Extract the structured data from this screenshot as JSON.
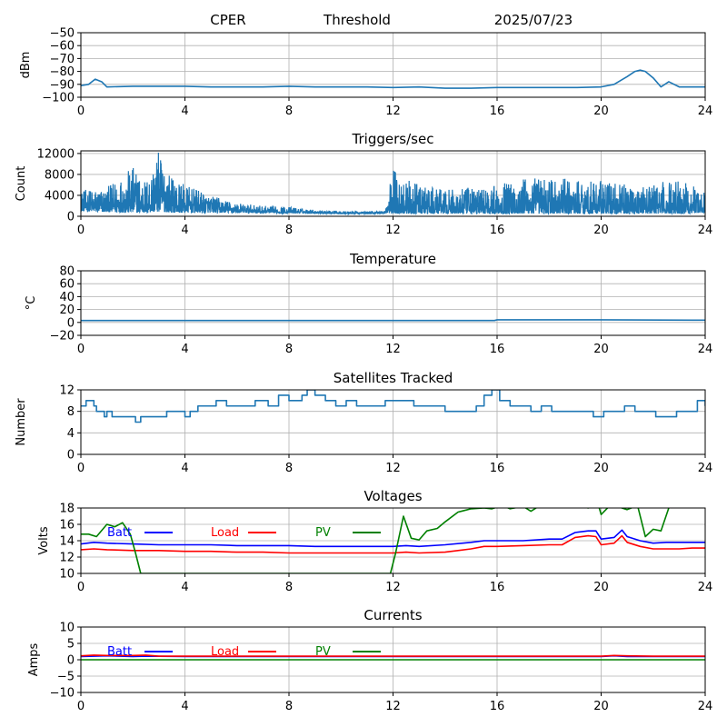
{
  "header": {
    "site": "CPER",
    "mode": "Threshold",
    "date": "2025/07/23"
  },
  "colors": {
    "series_default": "#1f77b4",
    "batt": "#0000ff",
    "load": "#ff0000",
    "pv": "#008000",
    "grid": "#b0b0b0"
  },
  "chart_data": [
    {
      "id": "threshold",
      "type": "line",
      "title": "",
      "xlabel": "",
      "ylabel": "dBm",
      "xlim": [
        0,
        24
      ],
      "ylim": [
        -100,
        -50
      ],
      "xticks": [
        0,
        4,
        8,
        12,
        16,
        20,
        24
      ],
      "yticks": [
        -100,
        -90,
        -80,
        -70,
        -60,
        -50
      ],
      "grid": true,
      "series": [
        {
          "color": "#1f77b4",
          "x": [
            0,
            0.3,
            0.55,
            0.8,
            1.0,
            2,
            3,
            4,
            5,
            6,
            7,
            8,
            9,
            10,
            11,
            12,
            13,
            14,
            15,
            16,
            17,
            18,
            19,
            20,
            20.5,
            21.0,
            21.3,
            21.5,
            21.7,
            22.0,
            22.3,
            22.6,
            23,
            24
          ],
          "y": [
            -91,
            -90,
            -86,
            -88,
            -92,
            -91.5,
            -91.5,
            -91.5,
            -92,
            -92,
            -92,
            -91.5,
            -92,
            -92,
            -92,
            -92.5,
            -92,
            -93,
            -93,
            -92.5,
            -92.5,
            -92.5,
            -92.5,
            -92,
            -90,
            -84,
            -80,
            -79,
            -80,
            -85,
            -92,
            -88,
            -92,
            -92
          ]
        }
      ]
    },
    {
      "id": "triggers",
      "type": "line",
      "title": "Triggers/sec",
      "xlabel": "",
      "ylabel": "Count",
      "xlim": [
        0,
        24
      ],
      "ylim": [
        0,
        12500
      ],
      "xticks": [
        0,
        4,
        8,
        12,
        16,
        20,
        24
      ],
      "yticks": [
        0,
        4000,
        8000,
        12000
      ],
      "grid": true,
      "noisy": true,
      "envelope": {
        "x": [
          0,
          1,
          2,
          2.5,
          3,
          3.5,
          4,
          5,
          6,
          7,
          8,
          9,
          10,
          11,
          11.7,
          12,
          12.3,
          13,
          14,
          15,
          16,
          17,
          18,
          19,
          20,
          21,
          22,
          23,
          24
        ],
        "high": [
          5000,
          5500,
          9500,
          7000,
          12500,
          7500,
          6000,
          4000,
          2500,
          2000,
          1800,
          1200,
          1000,
          900,
          1200,
          9500,
          7500,
          6000,
          5000,
          5500,
          6000,
          7500,
          7500,
          7000,
          7000,
          6000,
          6000,
          7500,
          4500
        ],
        "low": [
          1000,
          800,
          700,
          700,
          900,
          700,
          700,
          700,
          700,
          600,
          600,
          600,
          500,
          500,
          500,
          500,
          500,
          500,
          500,
          500,
          500,
          500,
          500,
          500,
          500,
          500,
          500,
          500,
          700
        ]
      }
    },
    {
      "id": "temperature",
      "type": "line",
      "title": "Temperature",
      "xlabel": "",
      "ylabel": "°C",
      "xlim": [
        0,
        24
      ],
      "ylim": [
        -20,
        80
      ],
      "xticks": [
        0,
        4,
        8,
        12,
        16,
        20,
        24
      ],
      "yticks": [
        -20,
        0,
        20,
        40,
        60,
        80
      ],
      "grid": true,
      "series": [
        {
          "color": "#1f77b4",
          "x": [
            0,
            4,
            8,
            12,
            15.9,
            16,
            20,
            24
          ],
          "y": [
            3,
            3,
            3,
            3,
            3,
            4,
            4,
            3.5
          ]
        }
      ]
    },
    {
      "id": "satellites",
      "type": "line",
      "title": "Satellites Tracked",
      "xlabel": "",
      "ylabel": "Number",
      "xlim": [
        0,
        24
      ],
      "ylim": [
        0,
        12
      ],
      "xticks": [
        0,
        4,
        8,
        12,
        16,
        20,
        24
      ],
      "yticks": [
        0,
        4,
        8,
        12
      ],
      "grid": true,
      "step": true,
      "series": [
        {
          "color": "#1f77b4",
          "x": [
            0,
            0.2,
            0.5,
            0.6,
            0.9,
            1.0,
            1.2,
            1.5,
            1.9,
            2.1,
            2.3,
            2.5,
            2.8,
            3.3,
            3.6,
            4.0,
            4.2,
            4.5,
            4.8,
            5.2,
            5.6,
            6.0,
            6.3,
            6.7,
            7.0,
            7.2,
            7.6,
            8.0,
            8.5,
            8.7,
            9.0,
            9.4,
            9.8,
            10.2,
            10.6,
            11.0,
            11.4,
            11.7,
            12.0,
            12.4,
            12.8,
            13.2,
            13.6,
            14.0,
            14.4,
            14.8,
            15.2,
            15.5,
            15.8,
            16.1,
            16.5,
            16.9,
            17.3,
            17.7,
            18.1,
            18.5,
            18.9,
            19.3,
            19.7,
            20.1,
            20.5,
            20.9,
            21.3,
            21.7,
            22.1,
            22.5,
            22.9,
            23.3,
            23.7,
            24
          ],
          "y": [
            9,
            10,
            9,
            8,
            7,
            8,
            7,
            7,
            7,
            6,
            7,
            7,
            7,
            8,
            8,
            7,
            8,
            9,
            9,
            10,
            9,
            9,
            9,
            10,
            10,
            9,
            11,
            10,
            11,
            12,
            11,
            10,
            9,
            10,
            9,
            9,
            9,
            10,
            10,
            10,
            9,
            9,
            9,
            8,
            8,
            8,
            9,
            11,
            12,
            10,
            9,
            9,
            8,
            9,
            8,
            8,
            8,
            8,
            7,
            8,
            8,
            9,
            8,
            8,
            7,
            7,
            8,
            8,
            10,
            9
          ]
        }
      ]
    },
    {
      "id": "voltages",
      "type": "line",
      "title": "Voltages",
      "xlabel": "",
      "ylabel": "Volts",
      "xlim": [
        0,
        24
      ],
      "ylim": [
        10,
        18
      ],
      "xticks": [
        0,
        4,
        8,
        12,
        16,
        20,
        24
      ],
      "yticks": [
        10,
        12,
        14,
        16,
        18
      ],
      "grid": true,
      "legend": [
        {
          "label": "Batt",
          "color": "#0000ff"
        },
        {
          "label": "Load",
          "color": "#ff0000"
        },
        {
          "label": "PV",
          "color": "#008000"
        }
      ],
      "series": [
        {
          "name": "Batt",
          "color": "#0000ff",
          "x": [
            0,
            0.5,
            1,
            2,
            3,
            4,
            5,
            6,
            7,
            8,
            9,
            10,
            11,
            12,
            12.5,
            13,
            14,
            15,
            15.5,
            16,
            17,
            18,
            18.5,
            19,
            19.5,
            19.8,
            20,
            20.5,
            20.8,
            21,
            21.5,
            22,
            22.5,
            23,
            23.5,
            24
          ],
          "y": [
            13.6,
            13.8,
            13.7,
            13.6,
            13.5,
            13.5,
            13.5,
            13.4,
            13.4,
            13.4,
            13.3,
            13.3,
            13.3,
            13.3,
            13.4,
            13.3,
            13.5,
            13.8,
            14.0,
            14.0,
            14.0,
            14.2,
            14.2,
            15.0,
            15.2,
            15.2,
            14.2,
            14.4,
            15.3,
            14.5,
            14.0,
            13.7,
            13.8,
            13.8,
            13.8,
            13.8
          ]
        },
        {
          "name": "Load",
          "color": "#ff0000",
          "x": [
            0,
            0.5,
            1,
            2,
            3,
            4,
            5,
            6,
            7,
            8,
            9,
            10,
            11,
            12,
            12.5,
            13,
            14,
            15,
            15.5,
            16,
            17,
            18,
            18.5,
            19,
            19.5,
            19.8,
            20,
            20.5,
            20.8,
            21,
            21.5,
            22,
            22.5,
            23,
            23.5,
            24
          ],
          "y": [
            12.9,
            13.0,
            12.9,
            12.8,
            12.8,
            12.7,
            12.7,
            12.6,
            12.6,
            12.5,
            12.5,
            12.5,
            12.5,
            12.5,
            12.6,
            12.5,
            12.6,
            13.0,
            13.3,
            13.3,
            13.4,
            13.5,
            13.5,
            14.4,
            14.6,
            14.5,
            13.5,
            13.7,
            14.6,
            13.8,
            13.3,
            13.0,
            13.0,
            13.0,
            13.1,
            13.1
          ]
        },
        {
          "name": "PV",
          "color": "#008000",
          "x": [
            0,
            0.3,
            0.6,
            1,
            1.3,
            1.6,
            1.9,
            2.1,
            2.3,
            11.9,
            12.1,
            12.4,
            12.7,
            13,
            13.3,
            13.7,
            14,
            14.5,
            15,
            15.5,
            15.8,
            16.2,
            16.5,
            17,
            17.3,
            17.6,
            18,
            18.3,
            18.7,
            19.1,
            19.5,
            19.9,
            20.0,
            20.4,
            20.7,
            21.0,
            21.4,
            21.7,
            22.0,
            22.3,
            22.6
          ],
          "y": [
            14.8,
            14.8,
            14.5,
            16.0,
            15.7,
            16.2,
            14.8,
            12.5,
            10.0,
            10.0,
            12.5,
            17.0,
            14.3,
            14.1,
            15.2,
            15.5,
            16.3,
            17.5,
            17.9,
            18.0,
            17.9,
            18.3,
            17.9,
            18.2,
            17.6,
            18.2,
            18.2,
            18.5,
            18.2,
            18.3,
            18.0,
            18.3,
            17.2,
            18.5,
            18.1,
            17.8,
            18.3,
            14.5,
            15.4,
            15.2,
            18.0
          ]
        }
      ]
    },
    {
      "id": "currents",
      "type": "line",
      "title": "Currents",
      "xlabel": "",
      "ylabel": "Amps",
      "xlim": [
        0,
        24
      ],
      "ylim": [
        -10,
        10
      ],
      "xticks": [
        0,
        4,
        8,
        12,
        16,
        20,
        24
      ],
      "yticks": [
        -10,
        -5,
        0,
        5,
        10
      ],
      "grid": true,
      "legend": [
        {
          "label": "Batt",
          "color": "#0000ff"
        },
        {
          "label": "Load",
          "color": "#ff0000"
        },
        {
          "label": "PV",
          "color": "#008000"
        }
      ],
      "series": [
        {
          "name": "Batt",
          "color": "#0000ff",
          "x": [
            0,
            1,
            2,
            2.5,
            4,
            8,
            12,
            16,
            20,
            20.5,
            21,
            22,
            24
          ],
          "y": [
            1.0,
            1.2,
            1.0,
            1.1,
            1.0,
            1.0,
            1.0,
            1.0,
            1.0,
            1.2,
            1.0,
            1.0,
            1.0
          ]
        },
        {
          "name": "Load",
          "color": "#ff0000",
          "x": [
            0,
            0.5,
            1,
            2,
            2.5,
            3,
            4,
            8,
            12,
            16,
            20,
            20.5,
            21,
            22,
            24
          ],
          "y": [
            1.2,
            1.4,
            1.3,
            1.3,
            1.4,
            1.1,
            1.1,
            1.1,
            1.1,
            1.1,
            1.1,
            1.3,
            1.2,
            1.1,
            1.1
          ]
        },
        {
          "name": "PV",
          "color": "#008000",
          "x": [
            0,
            24
          ],
          "y": [
            0,
            0
          ]
        }
      ]
    }
  ]
}
